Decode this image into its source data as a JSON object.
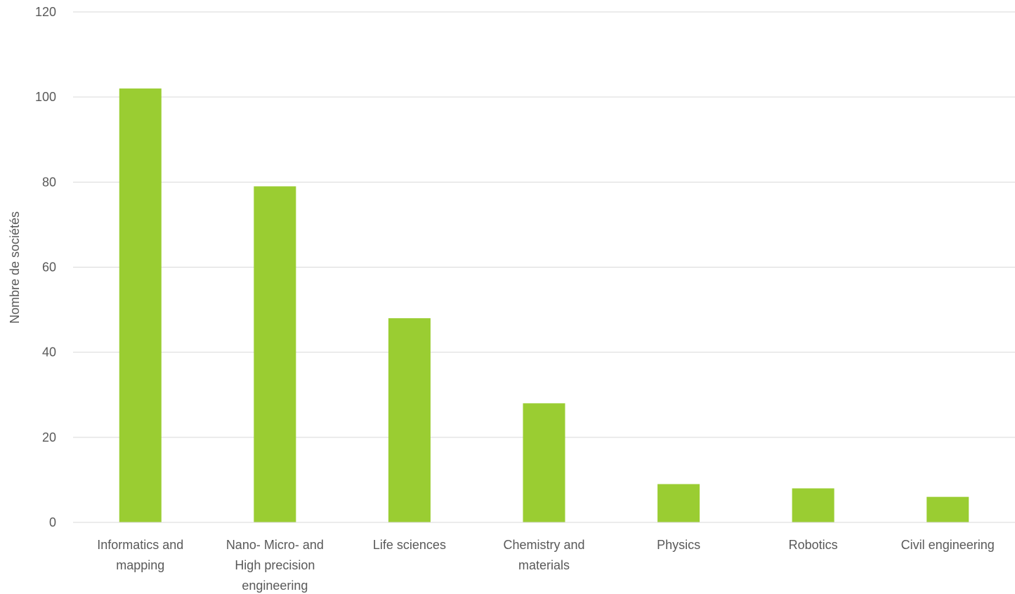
{
  "chart_data": {
    "type": "bar",
    "title": "",
    "xlabel": "",
    "ylabel": "Nombre de sociétés",
    "ylim": [
      0,
      120
    ],
    "yticks": [
      0,
      20,
      40,
      60,
      80,
      100,
      120
    ],
    "grid": true,
    "legend": "none",
    "bar_color": "#9acd32",
    "categories": [
      [
        "Informatics and",
        "mapping"
      ],
      [
        "Nano- Micro- and",
        "High precision",
        "engineering"
      ],
      [
        "Life sciences"
      ],
      [
        "Chemistry and",
        "materials"
      ],
      [
        "Physics"
      ],
      [
        "Robotics"
      ],
      [
        "Civil engineering"
      ]
    ],
    "values": [
      102,
      79,
      48,
      28,
      9,
      8,
      6
    ]
  }
}
